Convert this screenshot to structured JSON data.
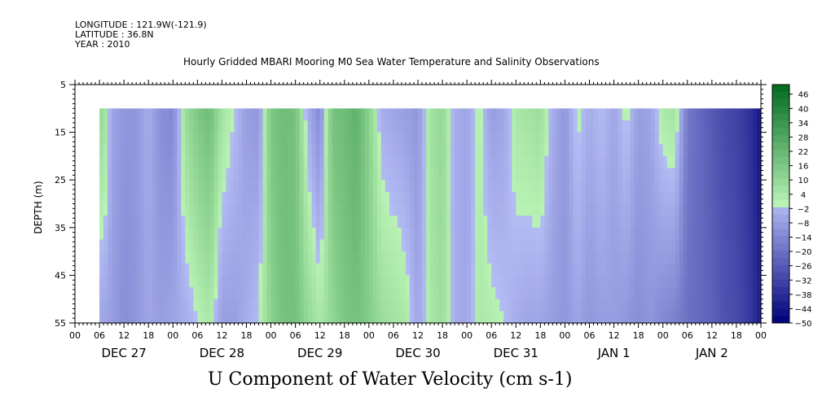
{
  "header": {
    "longitude": "LONGITUDE : 121.9W(-121.9)",
    "latitude": "LATITUDE : 36.8N",
    "year": "YEAR : 2010"
  },
  "chart_data": {
    "type": "heatmap",
    "title": "Hourly Gridded MBARI Mooring M0 Sea Water Temperature and Salinity Observations",
    "xlabel": "U Component of Water Velocity (cm s-1)",
    "ylabel": "DEPTH (m)",
    "ylim": [
      5,
      55
    ],
    "y_inverted": true,
    "data_depth_range": [
      10,
      55
    ],
    "y_ticks": [
      5,
      15,
      25,
      35,
      45,
      55
    ],
    "x_range_hours": [
      0,
      168
    ],
    "data_start_hour": 6,
    "x_hour_tick_labels": [
      "00",
      "06",
      "12",
      "18",
      "00",
      "06",
      "12",
      "18",
      "00",
      "06",
      "12",
      "18",
      "00",
      "06",
      "12",
      "18",
      "00",
      "06",
      "12",
      "18",
      "00",
      "06",
      "12",
      "18",
      "00",
      "06",
      "12",
      "18",
      "00"
    ],
    "day_labels": [
      "DEC 27",
      "DEC 28",
      "DEC 29",
      "DEC 30",
      "DEC 31",
      "JAN  1",
      "JAN  2"
    ],
    "colorbar": {
      "levels": [
        -50,
        -44,
        -38,
        -32,
        -26,
        -20,
        -14,
        -8,
        -2,
        4,
        10,
        16,
        22,
        28,
        34,
        40,
        46
      ],
      "min": -50,
      "max": 50,
      "negative_color_low": "#00007a",
      "negative_color_high": "#b4bcf4",
      "positive_color_low": "#b8f2b4",
      "positive_color_high": "#006a1c"
    },
    "column_profiles": {
      "description_hours": [
        6,
        7,
        9,
        12,
        15,
        18,
        21,
        24,
        27,
        30,
        33,
        36,
        39,
        42,
        45,
        48,
        51,
        54,
        57,
        60,
        63,
        66,
        69,
        72,
        75,
        78,
        81,
        84,
        87,
        90,
        93,
        96,
        99,
        102,
        105,
        108,
        111,
        114,
        117,
        120,
        123,
        126,
        129,
        132,
        135,
        138,
        141,
        144,
        147,
        150,
        153,
        156,
        159,
        162,
        165,
        168
      ],
      "surface_u": [
        8,
        10,
        -6,
        -10,
        -10,
        -4,
        -12,
        -14,
        8,
        16,
        20,
        6,
        0,
        -8,
        -10,
        16,
        20,
        18,
        -4,
        -14,
        18,
        20,
        24,
        12,
        -4,
        -6,
        -8,
        -10,
        6,
        10,
        -4,
        -6,
        2,
        -8,
        -6,
        4,
        6,
        8,
        -4,
        -10,
        2,
        -4,
        0,
        -6,
        2,
        -8,
        -6,
        4,
        6,
        -18,
        -22,
        -26,
        -30,
        -32,
        -36,
        -44
      ],
      "bottom_u": [
        -6,
        -6,
        -8,
        -12,
        -10,
        -6,
        -8,
        -6,
        -4,
        0,
        4,
        -8,
        -8,
        -4,
        0,
        12,
        18,
        18,
        10,
        4,
        10,
        16,
        18,
        14,
        8,
        6,
        4,
        -6,
        4,
        8,
        -4,
        -6,
        4,
        2,
        0,
        -4,
        -6,
        -6,
        -8,
        -10,
        -6,
        -10,
        -8,
        -8,
        -10,
        -12,
        -10,
        -14,
        -16,
        -20,
        -22,
        -24,
        -28,
        -30,
        -34,
        -42
      ]
    }
  }
}
